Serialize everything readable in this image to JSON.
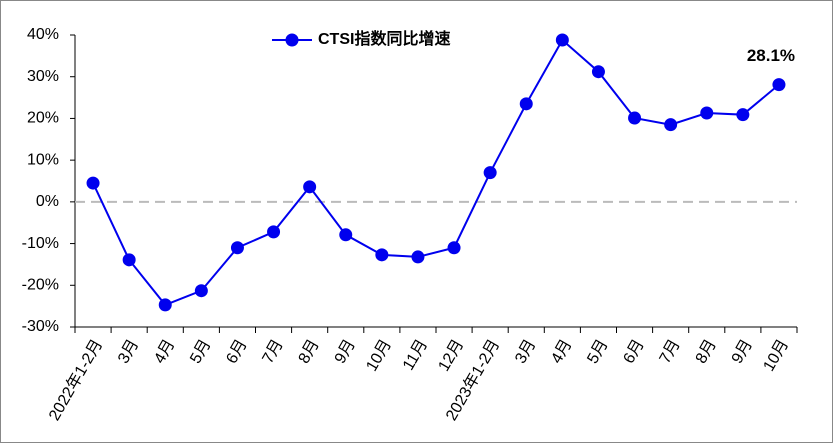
{
  "chart_data": {
    "type": "line",
    "categories": [
      "2022年1-2月",
      "3月",
      "4月",
      "5月",
      "6月",
      "7月",
      "8月",
      "9月",
      "10月",
      "11月",
      "12月",
      "2023年1-2月",
      "3月",
      "4月",
      "5月",
      "6月",
      "7月",
      "8月",
      "9月",
      "10月"
    ],
    "series": [
      {
        "name": "CTSI指数同比增速",
        "color": "#0000ee",
        "values": [
          4.5,
          -13.9,
          -24.7,
          -21.3,
          -11,
          -7.2,
          3.6,
          -7.9,
          -12.7,
          -13.2,
          -11,
          7,
          23.5,
          38.8,
          31.2,
          20.1,
          18.5,
          21.3,
          20.9,
          28.1
        ],
        "value_labels": [
          null,
          null,
          null,
          null,
          null,
          null,
          null,
          null,
          null,
          null,
          null,
          null,
          null,
          null,
          null,
          null,
          null,
          null,
          null,
          "28.1%"
        ]
      }
    ],
    "ylim": [
      -30,
      40
    ],
    "yticks": [
      {
        "value": -30,
        "label": "-30%"
      },
      {
        "value": -20,
        "label": "-20%"
      },
      {
        "value": -10,
        "label": "-10%"
      },
      {
        "value": 0,
        "label": "0%"
      },
      {
        "value": 10,
        "label": "10%"
      },
      {
        "value": 20,
        "label": "20%"
      },
      {
        "value": 30,
        "label": "30%"
      },
      {
        "value": 40,
        "label": "40%"
      }
    ]
  }
}
